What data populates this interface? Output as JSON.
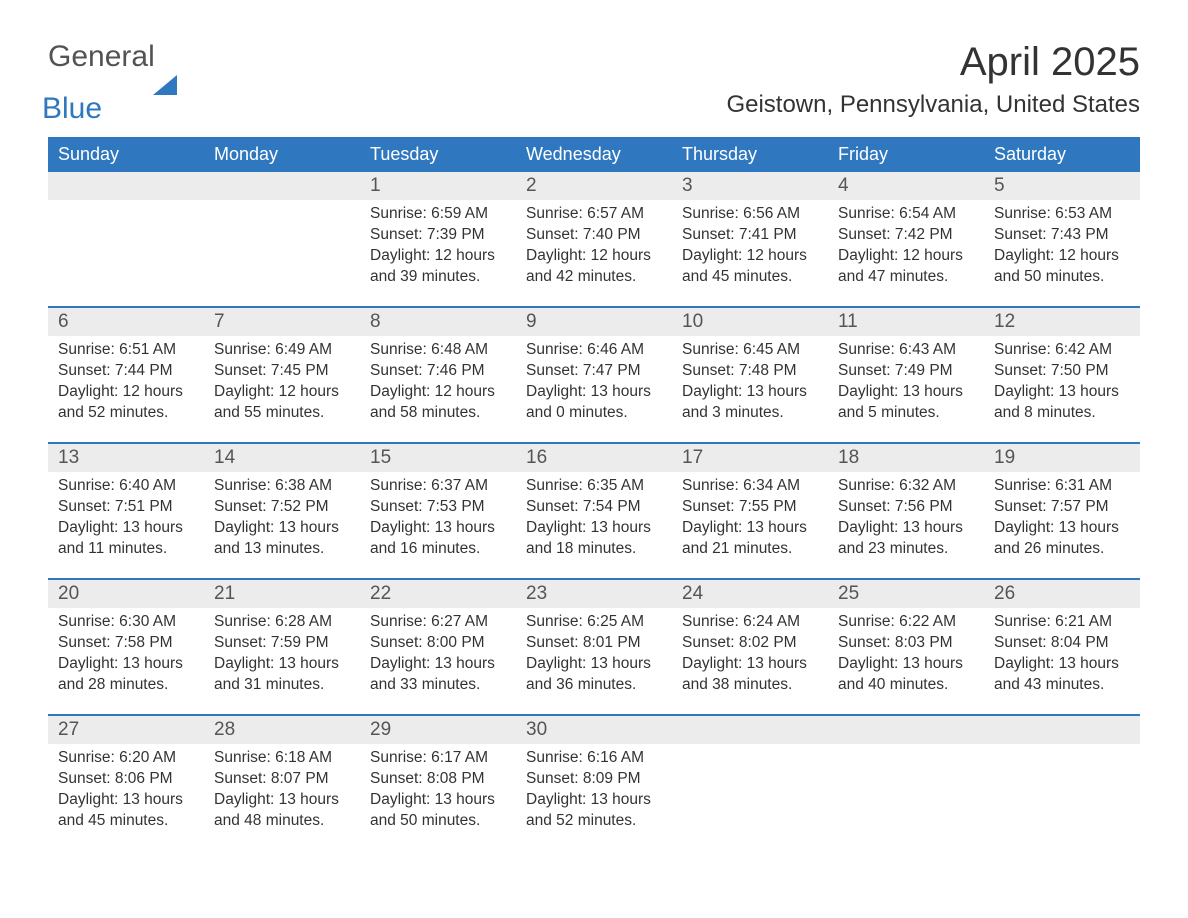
{
  "logo": {
    "general": "General",
    "blue": "Blue"
  },
  "title": "April 2025",
  "location": "Geistown, Pennsylvania, United States",
  "colors": {
    "header_bg": "#2f78bf",
    "header_text": "#ffffff",
    "band_bg": "#ececec",
    "rule": "#2f78bf",
    "text": "#333333",
    "page_bg": "#ffffff"
  },
  "days_of_week": [
    "Sunday",
    "Monday",
    "Tuesday",
    "Wednesday",
    "Thursday",
    "Friday",
    "Saturday"
  ],
  "weeks": [
    [
      {
        "n": "",
        "sunrise": "",
        "sunset": "",
        "daylight": ""
      },
      {
        "n": "",
        "sunrise": "",
        "sunset": "",
        "daylight": ""
      },
      {
        "n": "1",
        "sunrise": "6:59 AM",
        "sunset": "7:39 PM",
        "daylight": "12 hours and 39 minutes."
      },
      {
        "n": "2",
        "sunrise": "6:57 AM",
        "sunset": "7:40 PM",
        "daylight": "12 hours and 42 minutes."
      },
      {
        "n": "3",
        "sunrise": "6:56 AM",
        "sunset": "7:41 PM",
        "daylight": "12 hours and 45 minutes."
      },
      {
        "n": "4",
        "sunrise": "6:54 AM",
        "sunset": "7:42 PM",
        "daylight": "12 hours and 47 minutes."
      },
      {
        "n": "5",
        "sunrise": "6:53 AM",
        "sunset": "7:43 PM",
        "daylight": "12 hours and 50 minutes."
      }
    ],
    [
      {
        "n": "6",
        "sunrise": "6:51 AM",
        "sunset": "7:44 PM",
        "daylight": "12 hours and 52 minutes."
      },
      {
        "n": "7",
        "sunrise": "6:49 AM",
        "sunset": "7:45 PM",
        "daylight": "12 hours and 55 minutes."
      },
      {
        "n": "8",
        "sunrise": "6:48 AM",
        "sunset": "7:46 PM",
        "daylight": "12 hours and 58 minutes."
      },
      {
        "n": "9",
        "sunrise": "6:46 AM",
        "sunset": "7:47 PM",
        "daylight": "13 hours and 0 minutes."
      },
      {
        "n": "10",
        "sunrise": "6:45 AM",
        "sunset": "7:48 PM",
        "daylight": "13 hours and 3 minutes."
      },
      {
        "n": "11",
        "sunrise": "6:43 AM",
        "sunset": "7:49 PM",
        "daylight": "13 hours and 5 minutes."
      },
      {
        "n": "12",
        "sunrise": "6:42 AM",
        "sunset": "7:50 PM",
        "daylight": "13 hours and 8 minutes."
      }
    ],
    [
      {
        "n": "13",
        "sunrise": "6:40 AM",
        "sunset": "7:51 PM",
        "daylight": "13 hours and 11 minutes."
      },
      {
        "n": "14",
        "sunrise": "6:38 AM",
        "sunset": "7:52 PM",
        "daylight": "13 hours and 13 minutes."
      },
      {
        "n": "15",
        "sunrise": "6:37 AM",
        "sunset": "7:53 PM",
        "daylight": "13 hours and 16 minutes."
      },
      {
        "n": "16",
        "sunrise": "6:35 AM",
        "sunset": "7:54 PM",
        "daylight": "13 hours and 18 minutes."
      },
      {
        "n": "17",
        "sunrise": "6:34 AM",
        "sunset": "7:55 PM",
        "daylight": "13 hours and 21 minutes."
      },
      {
        "n": "18",
        "sunrise": "6:32 AM",
        "sunset": "7:56 PM",
        "daylight": "13 hours and 23 minutes."
      },
      {
        "n": "19",
        "sunrise": "6:31 AM",
        "sunset": "7:57 PM",
        "daylight": "13 hours and 26 minutes."
      }
    ],
    [
      {
        "n": "20",
        "sunrise": "6:30 AM",
        "sunset": "7:58 PM",
        "daylight": "13 hours and 28 minutes."
      },
      {
        "n": "21",
        "sunrise": "6:28 AM",
        "sunset": "7:59 PM",
        "daylight": "13 hours and 31 minutes."
      },
      {
        "n": "22",
        "sunrise": "6:27 AM",
        "sunset": "8:00 PM",
        "daylight": "13 hours and 33 minutes."
      },
      {
        "n": "23",
        "sunrise": "6:25 AM",
        "sunset": "8:01 PM",
        "daylight": "13 hours and 36 minutes."
      },
      {
        "n": "24",
        "sunrise": "6:24 AM",
        "sunset": "8:02 PM",
        "daylight": "13 hours and 38 minutes."
      },
      {
        "n": "25",
        "sunrise": "6:22 AM",
        "sunset": "8:03 PM",
        "daylight": "13 hours and 40 minutes."
      },
      {
        "n": "26",
        "sunrise": "6:21 AM",
        "sunset": "8:04 PM",
        "daylight": "13 hours and 43 minutes."
      }
    ],
    [
      {
        "n": "27",
        "sunrise": "6:20 AM",
        "sunset": "8:06 PM",
        "daylight": "13 hours and 45 minutes."
      },
      {
        "n": "28",
        "sunrise": "6:18 AM",
        "sunset": "8:07 PM",
        "daylight": "13 hours and 48 minutes."
      },
      {
        "n": "29",
        "sunrise": "6:17 AM",
        "sunset": "8:08 PM",
        "daylight": "13 hours and 50 minutes."
      },
      {
        "n": "30",
        "sunrise": "6:16 AM",
        "sunset": "8:09 PM",
        "daylight": "13 hours and 52 minutes."
      },
      {
        "n": "",
        "sunrise": "",
        "sunset": "",
        "daylight": ""
      },
      {
        "n": "",
        "sunrise": "",
        "sunset": "",
        "daylight": ""
      },
      {
        "n": "",
        "sunrise": "",
        "sunset": "",
        "daylight": ""
      }
    ]
  ],
  "labels": {
    "sunrise": "Sunrise:",
    "sunset": "Sunset:",
    "daylight": "Daylight:"
  }
}
